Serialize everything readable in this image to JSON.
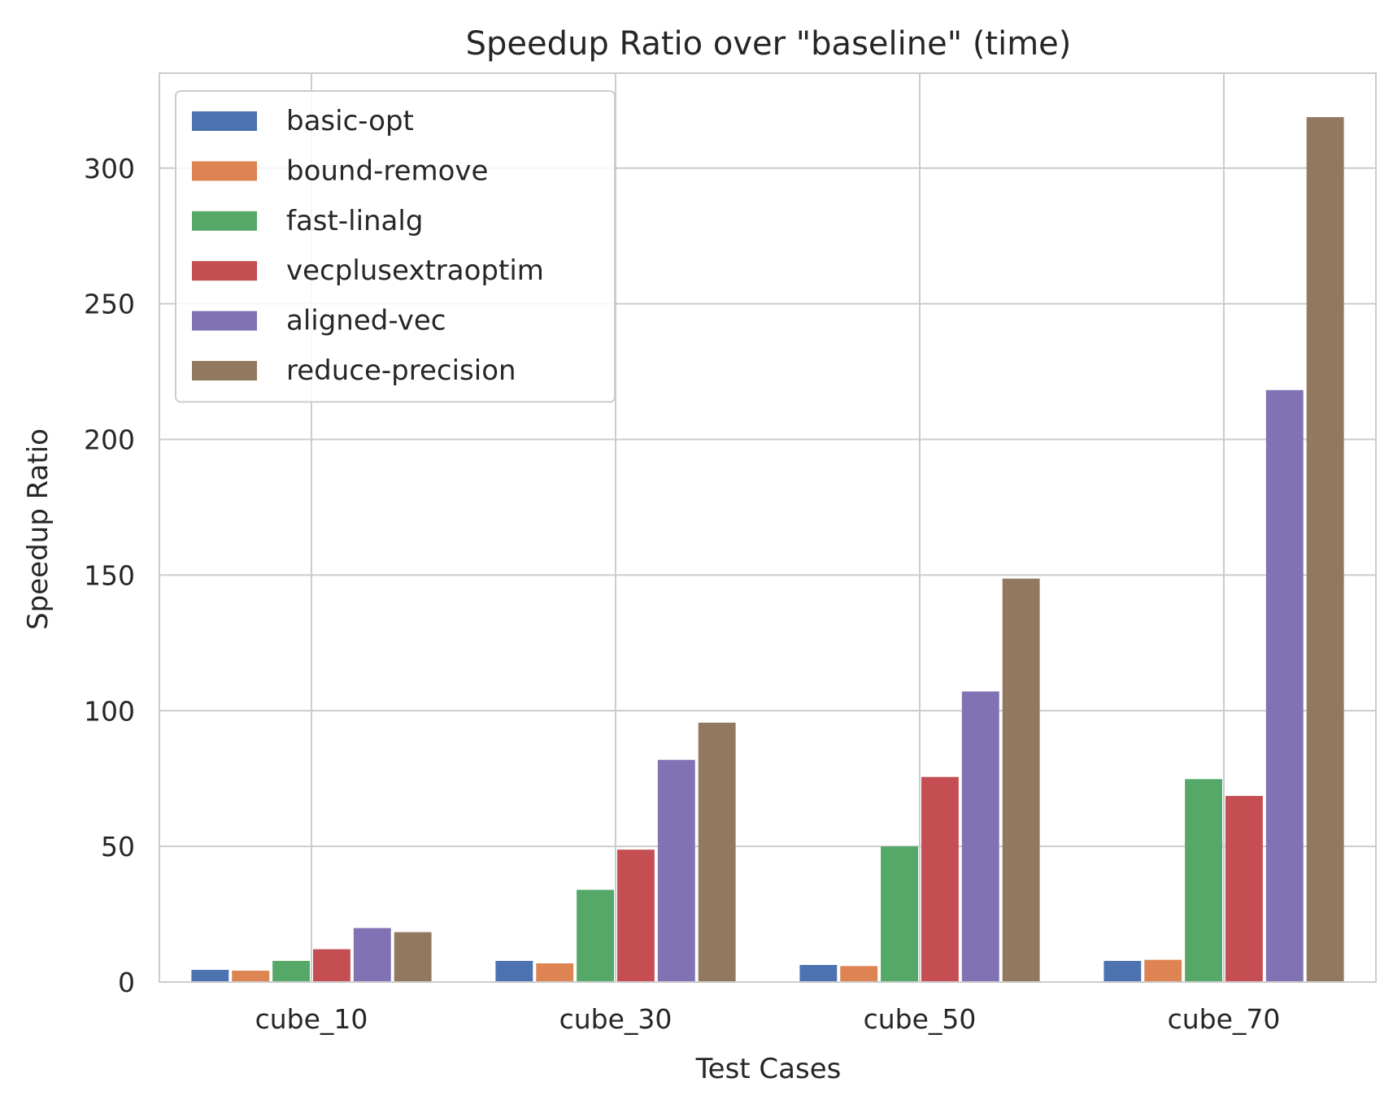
{
  "chart_data": {
    "type": "bar",
    "title": "Speedup Ratio over \"baseline\" (time)",
    "xlabel": "Test Cases",
    "ylabel": "Speedup Ratio",
    "categories": [
      "cube_10",
      "cube_30",
      "cube_50",
      "cube_70"
    ],
    "ylim": [
      0,
      335
    ],
    "yticks": [
      0,
      50,
      100,
      150,
      200,
      250,
      300
    ],
    "grid": true,
    "legend_position": "upper-left",
    "series": [
      {
        "name": "basic-opt",
        "color": "#4c72b0",
        "values": [
          4.5,
          7.8,
          6.3,
          7.8
        ]
      },
      {
        "name": "bound-remove",
        "color": "#dd8452",
        "values": [
          4.2,
          6.9,
          5.9,
          8.2
        ]
      },
      {
        "name": "fast-linalg",
        "color": "#55a868",
        "values": [
          7.8,
          34.0,
          50.0,
          74.8
        ]
      },
      {
        "name": "vecplusextraoptim",
        "color": "#c44e52",
        "values": [
          12.1,
          48.8,
          75.6,
          68.6
        ]
      },
      {
        "name": "aligned-vec",
        "color": "#8172b3",
        "values": [
          19.9,
          81.9,
          107.1,
          218.2
        ]
      },
      {
        "name": "reduce-precision",
        "color": "#937860",
        "values": [
          18.4,
          95.6,
          148.7,
          318.8
        ]
      }
    ]
  }
}
